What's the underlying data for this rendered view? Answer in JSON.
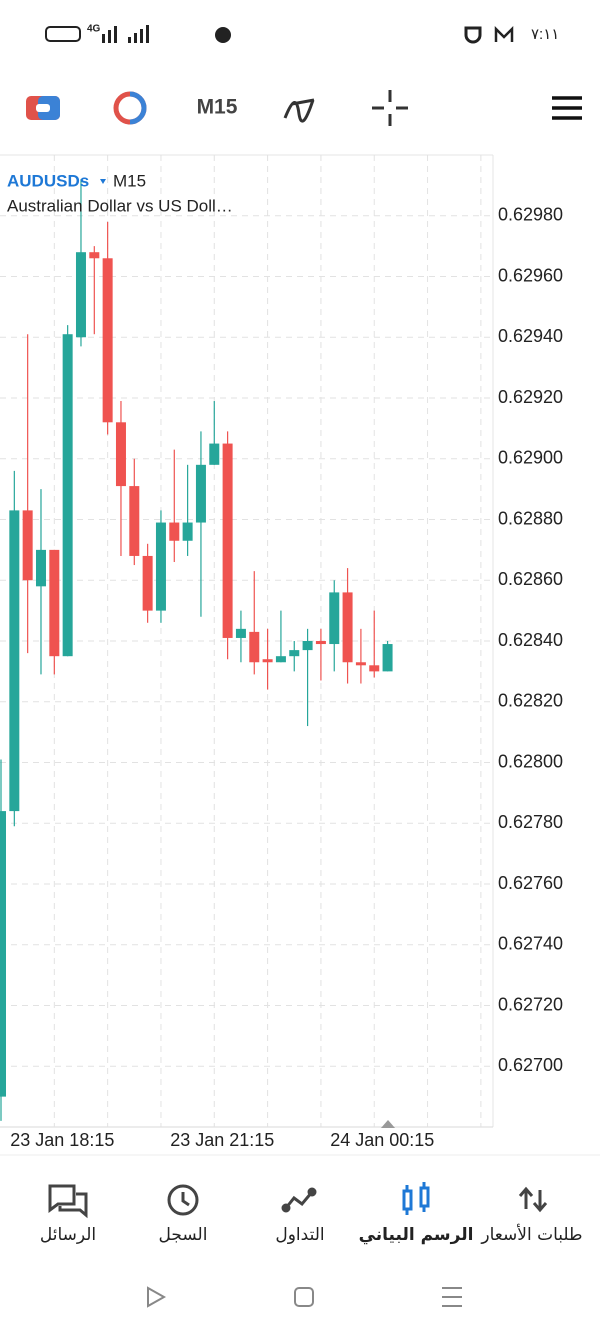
{
  "status_bar": {
    "network": "4G",
    "time": "٧:١١"
  },
  "toolbar": {
    "timeframe": "M15"
  },
  "chart_data": {
    "type": "candlestick",
    "symbol": "AUDUSDs",
    "timeframe": "M15",
    "description": "Australian Dollar vs US Doll…",
    "categories": [
      null,
      null,
      null,
      null,
      "23 Jan 18:15",
      null,
      null,
      null,
      null,
      null,
      null,
      null,
      null,
      null,
      null,
      null,
      "23 Jan 21:15",
      null,
      null,
      null,
      null,
      null,
      null,
      null,
      null,
      null,
      null,
      null,
      "24 Jan 00:15",
      null
    ],
    "open": [
      0.6269,
      0.62784,
      0.62883,
      0.62858,
      0.6287,
      0.62835,
      0.6294,
      0.62968,
      0.62966,
      0.62912,
      0.62891,
      0.62868,
      0.6285,
      0.62879,
      0.62873,
      0.62879,
      0.62898,
      0.62905,
      0.62841,
      0.62843,
      0.62834,
      0.62833,
      0.62835,
      0.62837,
      0.6284,
      0.62839,
      0.62856,
      0.62833,
      0.62832,
      0.6283
    ],
    "high": [
      0.62801,
      0.62896,
      0.62941,
      0.6289,
      0.6287,
      0.62944,
      0.62992,
      0.6297,
      0.62978,
      0.62919,
      0.629,
      0.62872,
      0.62883,
      0.62903,
      0.62898,
      0.62909,
      0.62919,
      0.62909,
      0.6285,
      0.62863,
      0.62844,
      0.6285,
      0.6284,
      0.62844,
      0.62844,
      0.6286,
      0.62864,
      0.62844,
      0.6285,
      0.6284
    ],
    "low": [
      0.62682,
      0.62779,
      0.62836,
      0.62829,
      0.62829,
      0.62835,
      0.62937,
      0.62941,
      0.62908,
      0.62868,
      0.62865,
      0.62846,
      0.62846,
      0.62866,
      0.62868,
      0.62848,
      0.62898,
      0.62834,
      0.62833,
      0.62829,
      0.62824,
      0.62833,
      0.6283,
      0.62812,
      0.62827,
      0.6283,
      0.62826,
      0.62826,
      0.62828,
      0.6283
    ],
    "close": [
      0.62784,
      0.62883,
      0.6286,
      0.6287,
      0.62835,
      0.62941,
      0.62968,
      0.62966,
      0.62912,
      0.62891,
      0.62868,
      0.6285,
      0.62879,
      0.62873,
      0.62879,
      0.62898,
      0.62905,
      0.62841,
      0.62844,
      0.62833,
      0.62833,
      0.62835,
      0.62837,
      0.6284,
      0.62839,
      0.62856,
      0.62833,
      0.62832,
      0.6283,
      0.62839
    ],
    "up_color": "#26a69a",
    "down_color": "#ef5350",
    "ylim": [
      0.6268,
      0.63
    ],
    "yticks": [
      {
        "value": 0.627,
        "label": "0.62700"
      },
      {
        "value": 0.6272,
        "label": "0.62720"
      },
      {
        "value": 0.6274,
        "label": "0.62740"
      },
      {
        "value": 0.6276,
        "label": "0.62760"
      },
      {
        "value": 0.6278,
        "label": "0.62780"
      },
      {
        "value": 0.628,
        "label": "0.62800"
      },
      {
        "value": 0.6282,
        "label": "0.62820"
      },
      {
        "value": 0.6284,
        "label": "0.62840"
      },
      {
        "value": 0.6286,
        "label": "0.62860"
      },
      {
        "value": 0.6288,
        "label": "0.62880"
      },
      {
        "value": 0.629,
        "label": "0.62900"
      },
      {
        "value": 0.6292,
        "label": "0.62920"
      },
      {
        "value": 0.6294,
        "label": "0.62940"
      },
      {
        "value": 0.6296,
        "label": "0.62960"
      },
      {
        "value": 0.6298,
        "label": "0.62980"
      }
    ],
    "grid": true
  },
  "bottom_nav": {
    "items": [
      "الرسائل",
      "السجل",
      "التداول",
      "الرسم البياني",
      "طلبات الأسعار"
    ],
    "active": 3,
    "active_color": "#1e78d6"
  }
}
